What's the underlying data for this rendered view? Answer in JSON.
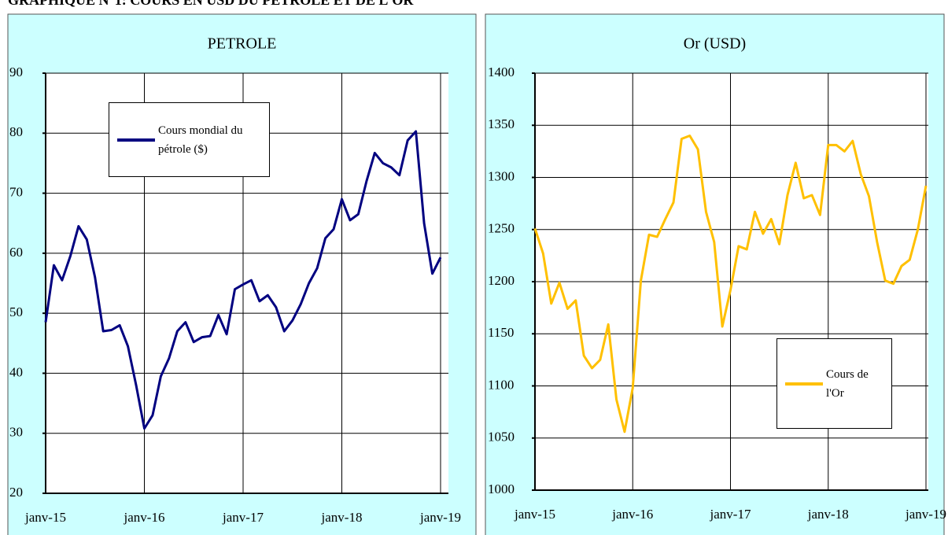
{
  "header": {
    "title": "GRAPHIQUE N°1: COURS EN USD DU PETROLE ET DE L'OR"
  },
  "chart_data": [
    {
      "type": "line",
      "title": "PETROLE",
      "categories": [
        "janv-15",
        null,
        null,
        null,
        null,
        null,
        null,
        null,
        null,
        null,
        null,
        null,
        "janv-16",
        null,
        null,
        null,
        null,
        null,
        null,
        null,
        null,
        null,
        null,
        null,
        "janv-17",
        null,
        null,
        null,
        null,
        null,
        null,
        null,
        null,
        null,
        null,
        null,
        "janv-18",
        null,
        null,
        null,
        null,
        null,
        null,
        null,
        null,
        null,
        null,
        null,
        "janv-19"
      ],
      "series": [
        {
          "name": "Cours mondial du pétrole ($)",
          "color": "#000080",
          "values": [
            48.5,
            58,
            55.5,
            59.5,
            64.5,
            62.3,
            56,
            47,
            47.2,
            48,
            44.5,
            38,
            30.8,
            33,
            39.5,
            42.5,
            47,
            48.5,
            45.2,
            46,
            46.2,
            49.7,
            46.5,
            54,
            54.8,
            55.5,
            52,
            53,
            51,
            47,
            48.8,
            51.5,
            55,
            57.5,
            62.5,
            64,
            69,
            65.5,
            66.5,
            72,
            76.7,
            75,
            74.3,
            73,
            78.8,
            80.3,
            65,
            56.6,
            59.3
          ]
        }
      ],
      "ylim": [
        20,
        90
      ],
      "yticks": [
        20,
        30,
        40,
        50,
        60,
        70,
        80,
        90
      ],
      "grid": true
    },
    {
      "type": "line",
      "title": "Or (USD)",
      "categories": [
        "janv-15",
        null,
        null,
        null,
        null,
        null,
        null,
        null,
        null,
        null,
        null,
        null,
        "janv-16",
        null,
        null,
        null,
        null,
        null,
        null,
        null,
        null,
        null,
        null,
        null,
        "janv-17",
        null,
        null,
        null,
        null,
        null,
        null,
        null,
        null,
        null,
        null,
        null,
        "janv-18",
        null,
        null,
        null,
        null,
        null,
        null,
        null,
        null,
        null,
        null,
        null,
        "janv-19"
      ],
      "series": [
        {
          "name": "Cours de l'Or",
          "color": "#ffc000",
          "values": [
            1251,
            1227,
            1179,
            1199,
            1174,
            1182,
            1129,
            1117,
            1125,
            1159,
            1087,
            1056,
            1098,
            1201,
            1245,
            1243,
            1260,
            1276,
            1337,
            1340,
            1327,
            1267,
            1238,
            1157,
            1192,
            1234,
            1231,
            1267,
            1246,
            1260,
            1236,
            1283,
            1314,
            1280,
            1283,
            1264,
            1331,
            1331,
            1325,
            1335,
            1303,
            1282,
            1238,
            1201,
            1198,
            1215,
            1221,
            1250,
            1292
          ]
        }
      ],
      "ylim": [
        1000,
        1400
      ],
      "yticks": [
        1000,
        1050,
        1100,
        1150,
        1200,
        1250,
        1300,
        1350,
        1400
      ],
      "grid": true
    }
  ]
}
